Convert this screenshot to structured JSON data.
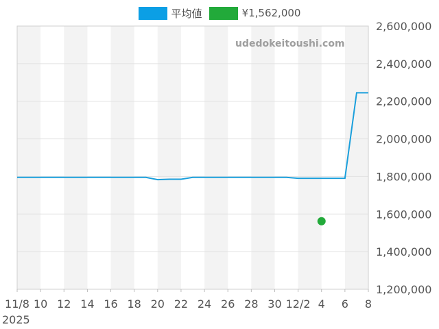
{
  "chart_data": {
    "type": "line",
    "x_tick_labels": [
      "11/8",
      "10",
      "12",
      "14",
      "16",
      "18",
      "20",
      "22",
      "24",
      "26",
      "28",
      "30",
      "12/2",
      "4",
      "6",
      "8"
    ],
    "year_label": "2025",
    "y_ticks": [
      "1,200,000",
      "1,400,000",
      "1,600,000",
      "1,800,000",
      "2,000,000",
      "2,200,000",
      "2,400,000",
      "2,600,000"
    ],
    "ylim": [
      1200000,
      2600000
    ],
    "x_range_days": [
      0,
      30
    ],
    "grid": true,
    "legend_position": "top-center",
    "series": [
      {
        "name": "平均値",
        "color": "#1a9fdc",
        "kind": "line",
        "points": [
          [
            0,
            1795000
          ],
          [
            1,
            1795000
          ],
          [
            2,
            1795000
          ],
          [
            3,
            1795000
          ],
          [
            4,
            1795000
          ],
          [
            5,
            1795000
          ],
          [
            6,
            1795000
          ],
          [
            7,
            1795000
          ],
          [
            8,
            1795000
          ],
          [
            9,
            1795000
          ],
          [
            10,
            1795000
          ],
          [
            11,
            1795000
          ],
          [
            12,
            1783000
          ],
          [
            13,
            1785000
          ],
          [
            14,
            1785000
          ],
          [
            15,
            1795000
          ],
          [
            16,
            1795000
          ],
          [
            17,
            1795000
          ],
          [
            18,
            1795000
          ],
          [
            19,
            1795000
          ],
          [
            20,
            1795000
          ],
          [
            21,
            1795000
          ],
          [
            22,
            1795000
          ],
          [
            23,
            1795000
          ],
          [
            24,
            1790000
          ],
          [
            25,
            1790000
          ],
          [
            26,
            1790000
          ],
          [
            27,
            1790000
          ],
          [
            28,
            1790000
          ],
          [
            29,
            2245000
          ],
          [
            30,
            2245000
          ]
        ]
      },
      {
        "name": "¥1,562,000",
        "color": "#22aa3a",
        "kind": "point",
        "points": [
          [
            26,
            1562000
          ]
        ]
      }
    ],
    "watermark": "udedokeitoushi.com"
  }
}
